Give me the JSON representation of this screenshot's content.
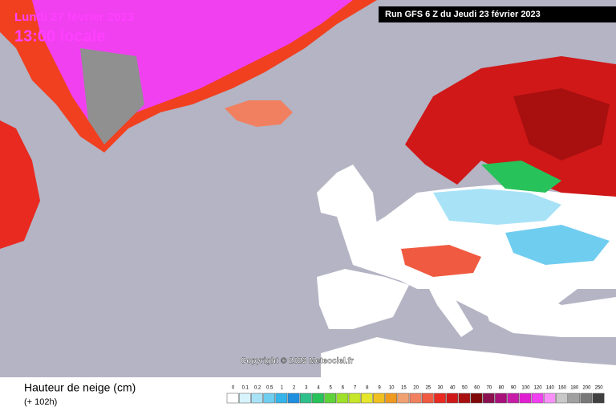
{
  "header": {
    "date": "Lundi 27 février 2023",
    "time": "13:00 locale",
    "run": "Run GFS 6 Z du Jeudi 23 février 2023"
  },
  "map": {
    "copyright": "Copyright © 2023 Meteociel.fr"
  },
  "legend": {
    "title": "Hauteur de neige (cm)",
    "lead": "(+ 102h)",
    "items": [
      {
        "label": "0",
        "color": "#ffffff"
      },
      {
        "label": "0.1",
        "color": "#d7f3fb"
      },
      {
        "label": "0.2",
        "color": "#a8e2f7"
      },
      {
        "label": "0.5",
        "color": "#6fcdf0"
      },
      {
        "label": "1",
        "color": "#34b4ea"
      },
      {
        "label": "2",
        "color": "#1f8fe0"
      },
      {
        "label": "3",
        "color": "#2fbf8a"
      },
      {
        "label": "4",
        "color": "#27c25a"
      },
      {
        "label": "5",
        "color": "#5fd23a"
      },
      {
        "label": "6",
        "color": "#9ee02a"
      },
      {
        "label": "7",
        "color": "#c6e62a"
      },
      {
        "label": "8",
        "color": "#e6e62a"
      },
      {
        "label": "9",
        "color": "#f0c020"
      },
      {
        "label": "10",
        "color": "#f09a20"
      },
      {
        "label": "15",
        "color": "#f0a070"
      },
      {
        "label": "20",
        "color": "#f08060"
      },
      {
        "label": "25",
        "color": "#f05a40"
      },
      {
        "label": "30",
        "color": "#e82a20"
      },
      {
        "label": "40",
        "color": "#d01818"
      },
      {
        "label": "50",
        "color": "#a80f0f"
      },
      {
        "label": "60",
        "color": "#800808"
      },
      {
        "label": "70",
        "color": "#8a1050"
      },
      {
        "label": "80",
        "color": "#a8107a"
      },
      {
        "label": "90",
        "color": "#c81ca8"
      },
      {
        "label": "100",
        "color": "#e020d0"
      },
      {
        "label": "120",
        "color": "#f040f0"
      },
      {
        "label": "140",
        "color": "#f890f8"
      },
      {
        "label": "160",
        "color": "#c8c8c8"
      },
      {
        "label": "180",
        "color": "#a0a0a0"
      },
      {
        "label": "200",
        "color": "#787878"
      },
      {
        "label": "250",
        "color": "#404040"
      }
    ]
  }
}
